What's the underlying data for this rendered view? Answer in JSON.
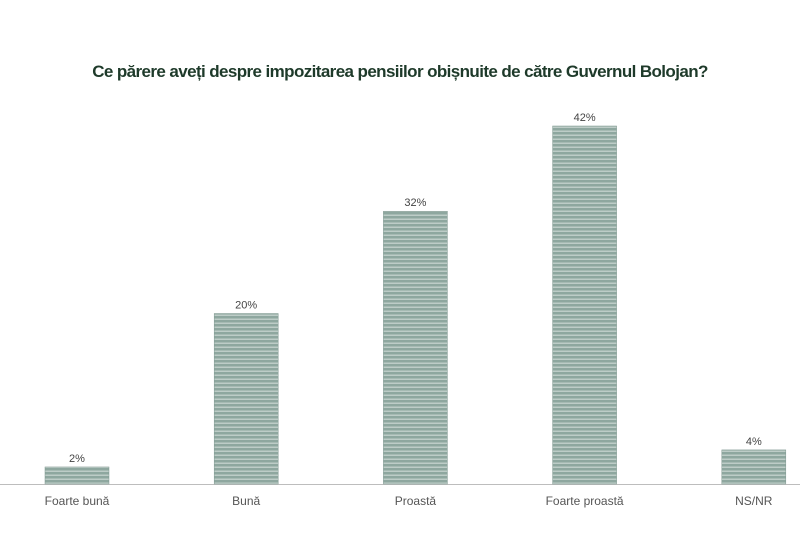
{
  "chart_data": {
    "type": "bar",
    "title": "Ce părere aveți despre impozitarea pensiilor obișnuite de către Guvernul Bolojan?",
    "categories": [
      "Foarte bună",
      "Bună",
      "Proastă",
      "Foarte proastă",
      "NS/NR"
    ],
    "values": [
      2,
      20,
      32,
      42,
      4
    ],
    "value_labels": [
      "2%",
      "20%",
      "32%",
      "42%",
      "4%"
    ],
    "xlabel": "",
    "ylabel": "",
    "ylim": [
      0,
      42
    ],
    "grid": false,
    "legend": "none",
    "colors": {
      "bar": "#8ea79f",
      "bar_stripe": "#c9d6d1",
      "title": "#1e3a2a",
      "axis": "#bdbdbd",
      "text": "#555555"
    }
  }
}
